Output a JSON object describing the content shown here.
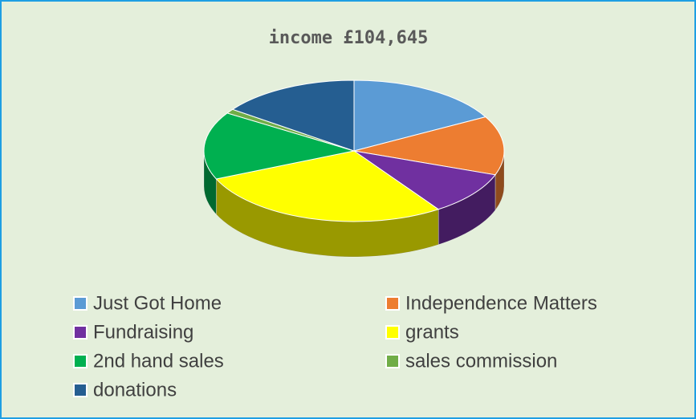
{
  "chart_data": {
    "type": "pie3d",
    "title": "income £104,645",
    "categories": [
      "Just Got Home",
      "Independence Matters",
      "Fundraising",
      "grants",
      "2nd hand sales",
      "sales commission",
      "donations"
    ],
    "values": [
      17,
      13.5,
      10,
      28,
      15.5,
      1,
      15
    ],
    "colors": [
      "#5b9bd5",
      "#ed7d31",
      "#7030a0",
      "#ffff00",
      "#00b050",
      "#70ad47",
      "#255e91"
    ],
    "legend": "bottom"
  }
}
